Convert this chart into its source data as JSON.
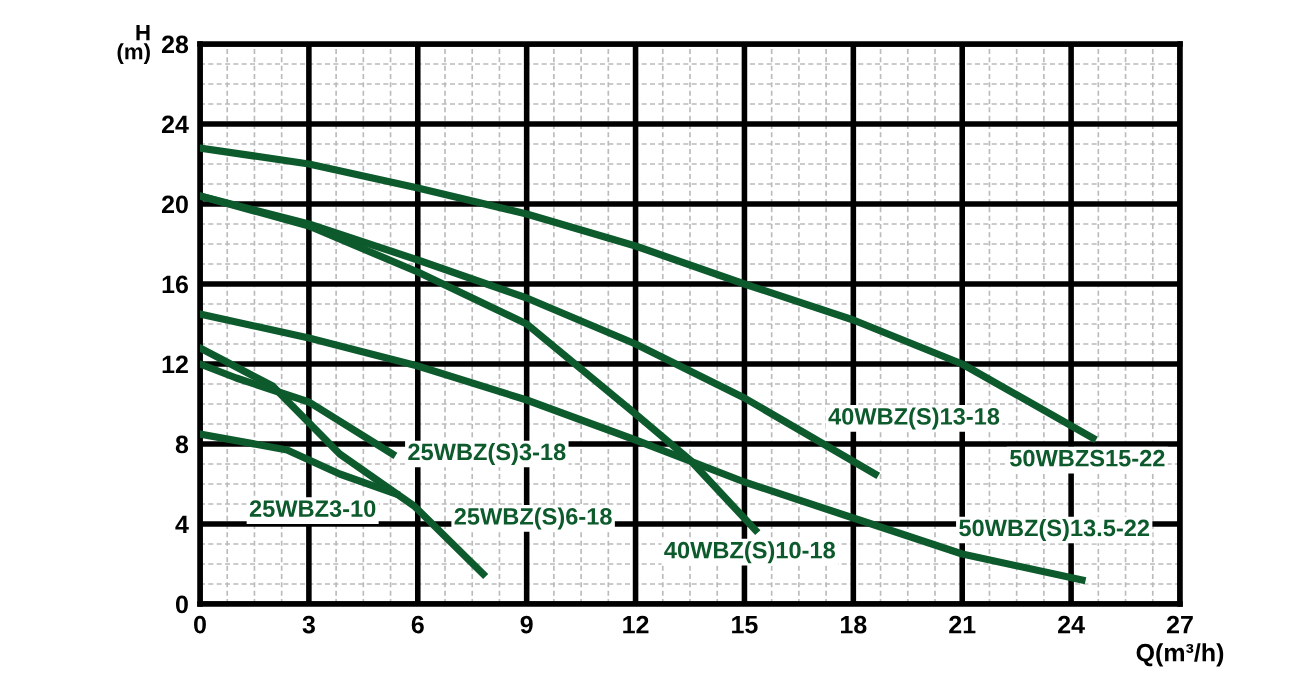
{
  "chart_data": {
    "type": "line",
    "xlabel": "Q(m³/h)",
    "ylabel": "H\n(m)",
    "xlim": [
      0,
      27
    ],
    "ylim": [
      0,
      28
    ],
    "xticks": [
      0,
      3,
      6,
      9,
      12,
      15,
      18,
      21,
      24,
      27
    ],
    "yticks": [
      0,
      4,
      8,
      12,
      16,
      20,
      24,
      28
    ],
    "grid": true,
    "marker": "none",
    "line_style": "solid",
    "series": [
      {
        "name": "50WBZS15-22",
        "color": "#0d5a2c",
        "x": [
          0,
          3,
          6,
          9,
          12,
          15,
          18,
          21,
          24.6
        ],
        "values": [
          22.8,
          22,
          20.8,
          19.5,
          17.9,
          16,
          14.2,
          12,
          8.3
        ]
      },
      {
        "name": "40WBZ(S)13-18",
        "color": "#0d5a2c",
        "x": [
          0,
          3,
          6,
          9,
          12,
          15,
          18.6
        ],
        "values": [
          20.4,
          19,
          17.2,
          15.3,
          13,
          10.3,
          6.5
        ]
      },
      {
        "name": "40WBZ(S)10-18",
        "color": "#0d5a2c",
        "x": [
          0,
          3,
          6,
          9,
          12,
          13.5,
          15.3
        ],
        "values": [
          20.4,
          18.9,
          16.6,
          14,
          9.5,
          7.2,
          3.7
        ]
      },
      {
        "name": "50WBZ(S)13.5-22",
        "color": "#0d5a2c",
        "x": [
          0,
          3,
          6,
          9,
          12,
          15,
          18,
          21,
          24.3
        ],
        "values": [
          14.5,
          13.3,
          11.9,
          10.2,
          8.2,
          6.1,
          4.3,
          2.5,
          1.2
        ]
      },
      {
        "name": "25WBZ(S)6-18",
        "color": "#0d5a2c",
        "x": [
          0,
          2,
          3.85,
          5.9,
          7.8
        ],
        "values": [
          12.8,
          10.9,
          7.5,
          4.9,
          1.5
        ]
      },
      {
        "name": "25WBZ(S)3-18",
        "color": "#0d5a2c",
        "x": [
          0,
          1,
          3,
          5.3
        ],
        "values": [
          12,
          11.3,
          10.1,
          7.5
        ]
      },
      {
        "name": "25WBZ3-10",
        "color": "#0d5a2c",
        "x": [
          0,
          2.4,
          3.85,
          5.4
        ],
        "values": [
          8.5,
          7.7,
          6.5,
          5.5
        ]
      }
    ]
  }
}
